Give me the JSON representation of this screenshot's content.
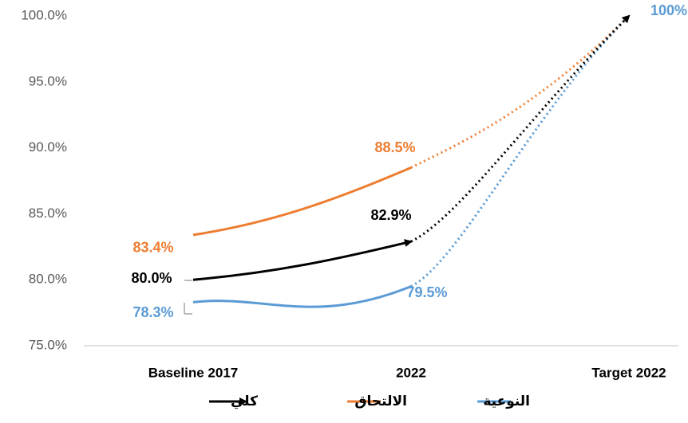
{
  "chart_data": {
    "type": "line",
    "categories": [
      "Baseline 2017",
      "2022",
      "Target 2022"
    ],
    "series": [
      {
        "name": "النوعية",
        "color": "#5b9bd5",
        "values": [
          78.3,
          79.5,
          100
        ],
        "value_labels": [
          "78.3%",
          "79.5%",
          "100%"
        ]
      },
      {
        "name": "الالتحاق",
        "color": "#ed7d31",
        "values": [
          83.4,
          88.5,
          100
        ],
        "value_labels": [
          "83.4%",
          "88.5%",
          null
        ]
      },
      {
        "name": "كلي",
        "color": "#000000",
        "values": [
          80.0,
          82.9,
          100
        ],
        "value_labels": [
          "80.0%",
          "82.9%",
          null
        ]
      }
    ],
    "ylim": [
      75,
      100
    ],
    "yticks": [
      {
        "value": 75,
        "label": "75.0%"
      },
      {
        "value": 80,
        "label": "80.0%"
      },
      {
        "value": 85,
        "label": "85.0%"
      },
      {
        "value": 90,
        "label": "90.0%"
      },
      {
        "value": 95,
        "label": "95.0%"
      },
      {
        "value": 100,
        "label": "100.0%"
      }
    ],
    "grid": false
  }
}
